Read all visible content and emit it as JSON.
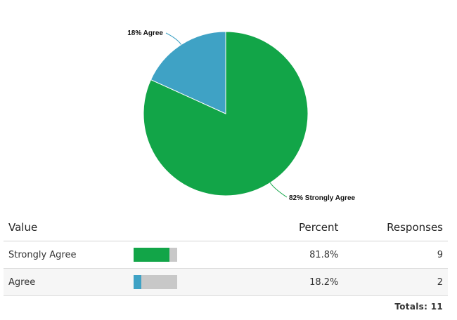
{
  "chart_data": {
    "type": "pie",
    "slices": [
      {
        "label": "Strongly Agree",
        "value": 81.8,
        "display_label": "82% Strongly Agree",
        "color": "#12a548"
      },
      {
        "label": "Agree",
        "value": 18.2,
        "display_label": "18% Agree",
        "color": "#3fa2c5"
      }
    ],
    "title": ""
  },
  "table": {
    "headers": {
      "value": "Value",
      "percent": "Percent",
      "responses": "Responses"
    },
    "rows": [
      {
        "value": "Strongly Agree",
        "percent": "81.8%",
        "percent_value": 81.8,
        "responses": "9",
        "color": "#12a548"
      },
      {
        "value": "Agree",
        "percent": "18.2%",
        "percent_value": 18.2,
        "responses": "2",
        "color": "#3fa2c5"
      }
    ],
    "bar_track_color": "#c8c8c8"
  },
  "totals": {
    "label": "Totals:",
    "value": "11"
  }
}
